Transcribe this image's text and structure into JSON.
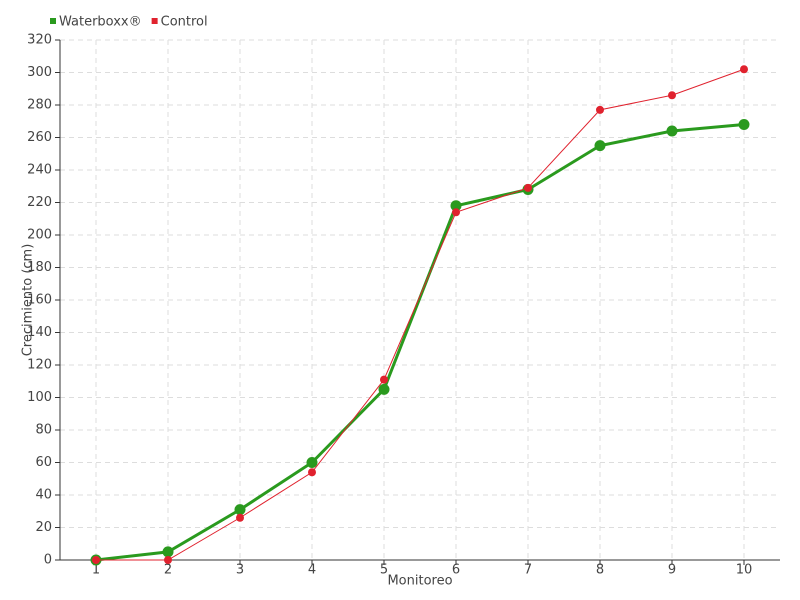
{
  "chart_data": {
    "type": "line",
    "x_label": "Monitoreo",
    "y_label": "Crecimiento (cm)",
    "x": [
      1,
      2,
      3,
      4,
      5,
      6,
      7,
      8,
      9,
      10
    ],
    "xlim": [
      0.5,
      10.5
    ],
    "xticks": [
      1,
      2,
      3,
      4,
      5,
      6,
      7,
      8,
      9,
      10
    ],
    "ylim": [
      0,
      320
    ],
    "yticks": [
      0,
      20,
      40,
      60,
      80,
      100,
      120,
      140,
      160,
      180,
      200,
      220,
      240,
      260,
      280,
      300,
      320
    ],
    "grid": true,
    "legend": "top-left",
    "series": [
      {
        "name": "Waterboxx®",
        "color": "#2a9a1e",
        "values": [
          0,
          5,
          31,
          60,
          105,
          218,
          228,
          255,
          264,
          268
        ]
      },
      {
        "name": "Control",
        "color": "#e0222e",
        "values": [
          0,
          0,
          26,
          54,
          111,
          214,
          229,
          277,
          286,
          302
        ]
      }
    ]
  }
}
